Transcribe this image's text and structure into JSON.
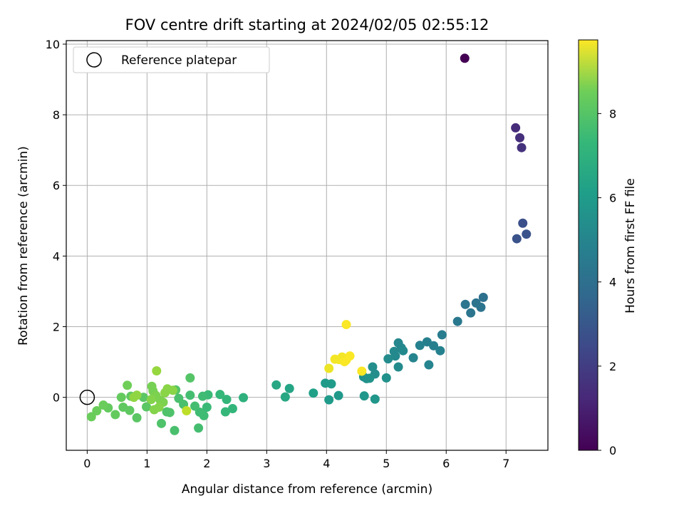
{
  "chart_data": {
    "type": "scatter",
    "title": "FOV centre drift starting at 2024/02/05 02:55:12",
    "xlabel": "Angular distance from reference (arcmin)",
    "ylabel": "Rotation from reference (arcmin)",
    "xlim": [
      -0.35,
      7.7
    ],
    "ylim": [
      -1.5,
      10.1
    ],
    "xticks": [
      0,
      1,
      2,
      3,
      4,
      5,
      6,
      7
    ],
    "yticks": [
      0,
      2,
      4,
      6,
      8,
      10
    ],
    "grid": true,
    "legend": {
      "placement": "top-left",
      "entries": [
        "Reference platepar"
      ]
    },
    "reference_point": {
      "x": 0,
      "y": 0,
      "label": "Reference platepar",
      "marker": "open-circle"
    },
    "colorbar": {
      "label": "Hours from first FF file",
      "colormap": "viridis",
      "range": [
        0,
        9.75
      ],
      "ticks": [
        0,
        2,
        4,
        6,
        8
      ]
    },
    "colors": {
      "viridis_low": "#440154",
      "viridis_mid": "#21918c",
      "viridis_high": "#fde725"
    },
    "points": [
      {
        "x": 6.31,
        "y": 9.6,
        "c": 0.0
      },
      {
        "x": 7.16,
        "y": 7.63,
        "c": 1.2
      },
      {
        "x": 7.23,
        "y": 7.35,
        "c": 1.3
      },
      {
        "x": 7.26,
        "y": 7.07,
        "c": 1.4
      },
      {
        "x": 7.28,
        "y": 4.93,
        "c": 2.4
      },
      {
        "x": 7.34,
        "y": 4.62,
        "c": 2.5
      },
      {
        "x": 7.18,
        "y": 4.49,
        "c": 2.5
      },
      {
        "x": 6.62,
        "y": 2.83,
        "c": 3.6
      },
      {
        "x": 6.5,
        "y": 2.67,
        "c": 3.7
      },
      {
        "x": 6.58,
        "y": 2.55,
        "c": 3.7
      },
      {
        "x": 6.32,
        "y": 2.63,
        "c": 3.8
      },
      {
        "x": 6.41,
        "y": 2.39,
        "c": 3.8
      },
      {
        "x": 6.19,
        "y": 2.15,
        "c": 3.9
      },
      {
        "x": 5.93,
        "y": 1.77,
        "c": 4.1
      },
      {
        "x": 5.68,
        "y": 1.57,
        "c": 4.2
      },
      {
        "x": 5.79,
        "y": 1.46,
        "c": 4.2
      },
      {
        "x": 5.56,
        "y": 1.47,
        "c": 4.3
      },
      {
        "x": 5.9,
        "y": 1.32,
        "c": 4.3
      },
      {
        "x": 5.45,
        "y": 1.12,
        "c": 4.4
      },
      {
        "x": 5.71,
        "y": 0.92,
        "c": 4.4
      },
      {
        "x": 5.2,
        "y": 1.54,
        "c": 4.5
      },
      {
        "x": 5.25,
        "y": 1.4,
        "c": 4.5
      },
      {
        "x": 5.13,
        "y": 1.3,
        "c": 4.6
      },
      {
        "x": 5.28,
        "y": 1.32,
        "c": 4.6
      },
      {
        "x": 5.15,
        "y": 1.17,
        "c": 4.6
      },
      {
        "x": 5.03,
        "y": 1.09,
        "c": 4.7
      },
      {
        "x": 5.2,
        "y": 0.86,
        "c": 4.7
      },
      {
        "x": 4.77,
        "y": 0.86,
        "c": 4.8
      },
      {
        "x": 4.81,
        "y": 0.66,
        "c": 4.8
      },
      {
        "x": 5.0,
        "y": 0.55,
        "c": 4.9
      },
      {
        "x": 4.62,
        "y": 0.58,
        "c": 4.9
      },
      {
        "x": 4.67,
        "y": 0.53,
        "c": 4.9
      },
      {
        "x": 4.72,
        "y": 0.54,
        "c": 5.0
      },
      {
        "x": 4.63,
        "y": 0.04,
        "c": 5.1
      },
      {
        "x": 4.81,
        "y": -0.05,
        "c": 5.1
      },
      {
        "x": 4.2,
        "y": 0.05,
        "c": 5.2
      },
      {
        "x": 3.98,
        "y": 0.4,
        "c": 5.3
      },
      {
        "x": 4.08,
        "y": 0.38,
        "c": 5.3
      },
      {
        "x": 4.04,
        "y": -0.07,
        "c": 5.3
      },
      {
        "x": 3.78,
        "y": 0.12,
        "c": 5.5
      },
      {
        "x": 3.38,
        "y": 0.25,
        "c": 5.7
      },
      {
        "x": 3.16,
        "y": 0.35,
        "c": 5.8
      },
      {
        "x": 3.31,
        "y": 0.01,
        "c": 5.8
      },
      {
        "x": 2.61,
        "y": -0.01,
        "c": 6.2
      },
      {
        "x": 2.43,
        "y": -0.32,
        "c": 6.4
      },
      {
        "x": 2.33,
        "y": -0.06,
        "c": 6.4
      },
      {
        "x": 2.31,
        "y": -0.41,
        "c": 6.5
      },
      {
        "x": 2.22,
        "y": 0.08,
        "c": 6.5
      },
      {
        "x": 2.02,
        "y": 0.07,
        "c": 6.6
      },
      {
        "x": 2.0,
        "y": -0.28,
        "c": 6.6
      },
      {
        "x": 1.93,
        "y": 0.03,
        "c": 6.7
      },
      {
        "x": 1.95,
        "y": -0.52,
        "c": 6.7
      },
      {
        "x": 1.88,
        "y": -0.42,
        "c": 6.7
      },
      {
        "x": 1.86,
        "y": -0.87,
        "c": 6.8
      },
      {
        "x": 1.8,
        "y": -0.25,
        "c": 6.8
      },
      {
        "x": 1.72,
        "y": 0.06,
        "c": 6.8
      },
      {
        "x": 1.61,
        "y": -0.2,
        "c": 6.9
      },
      {
        "x": 1.53,
        "y": -0.03,
        "c": 6.9
      },
      {
        "x": 1.46,
        "y": -0.94,
        "c": 6.9
      },
      {
        "x": 1.38,
        "y": -0.43,
        "c": 7.0
      },
      {
        "x": 1.33,
        "y": -0.41,
        "c": 7.0
      },
      {
        "x": 1.24,
        "y": -0.74,
        "c": 7.0
      },
      {
        "x": 1.72,
        "y": 0.55,
        "c": 7.1
      },
      {
        "x": 1.48,
        "y": 0.21,
        "c": 7.1
      },
      {
        "x": 0.99,
        "y": -0.27,
        "c": 7.2
      },
      {
        "x": 0.94,
        "y": 0.0,
        "c": 7.2
      },
      {
        "x": 0.83,
        "y": -0.58,
        "c": 7.2
      },
      {
        "x": 0.71,
        "y": -0.37,
        "c": 7.3
      },
      {
        "x": 0.73,
        "y": 0.03,
        "c": 7.3
      },
      {
        "x": 0.6,
        "y": -0.28,
        "c": 7.3
      },
      {
        "x": 0.57,
        "y": 0.0,
        "c": 7.4
      },
      {
        "x": 0.47,
        "y": -0.49,
        "c": 7.4
      },
      {
        "x": 0.35,
        "y": -0.3,
        "c": 7.4
      },
      {
        "x": 0.27,
        "y": -0.22,
        "c": 7.5
      },
      {
        "x": 0.16,
        "y": -0.38,
        "c": 7.5
      },
      {
        "x": 0.07,
        "y": -0.55,
        "c": 7.5
      },
      {
        "x": 0.67,
        "y": 0.34,
        "c": 7.6
      },
      {
        "x": 1.08,
        "y": 0.31,
        "c": 7.7
      },
      {
        "x": 1.1,
        "y": 0.18,
        "c": 7.7
      },
      {
        "x": 1.15,
        "y": 0.05,
        "c": 7.8
      },
      {
        "x": 1.22,
        "y": -0.08,
        "c": 7.8
      },
      {
        "x": 1.27,
        "y": -0.14,
        "c": 7.8
      },
      {
        "x": 1.07,
        "y": -0.06,
        "c": 7.9
      },
      {
        "x": 1.12,
        "y": -0.35,
        "c": 7.9
      },
      {
        "x": 1.2,
        "y": -0.28,
        "c": 7.9
      },
      {
        "x": 1.3,
        "y": 0.13,
        "c": 8.0
      },
      {
        "x": 1.34,
        "y": 0.24,
        "c": 8.0
      },
      {
        "x": 1.43,
        "y": 0.2,
        "c": 8.0
      },
      {
        "x": 0.83,
        "y": 0.06,
        "c": 8.1
      },
      {
        "x": 0.78,
        "y": 0.0,
        "c": 8.1
      },
      {
        "x": 1.16,
        "y": 0.75,
        "c": 8.2
      },
      {
        "x": 1.66,
        "y": -0.38,
        "c": 8.8
      },
      {
        "x": 4.04,
        "y": 0.82,
        "c": 9.5
      },
      {
        "x": 4.14,
        "y": 1.08,
        "c": 9.6
      },
      {
        "x": 4.21,
        "y": 1.07,
        "c": 9.6
      },
      {
        "x": 4.26,
        "y": 1.14,
        "c": 9.6
      },
      {
        "x": 4.33,
        "y": 1.06,
        "c": 9.6
      },
      {
        "x": 4.3,
        "y": 1.01,
        "c": 9.7
      },
      {
        "x": 4.39,
        "y": 1.17,
        "c": 9.7
      },
      {
        "x": 4.33,
        "y": 2.06,
        "c": 9.7
      },
      {
        "x": 4.59,
        "y": 0.74,
        "c": 9.7
      }
    ]
  }
}
